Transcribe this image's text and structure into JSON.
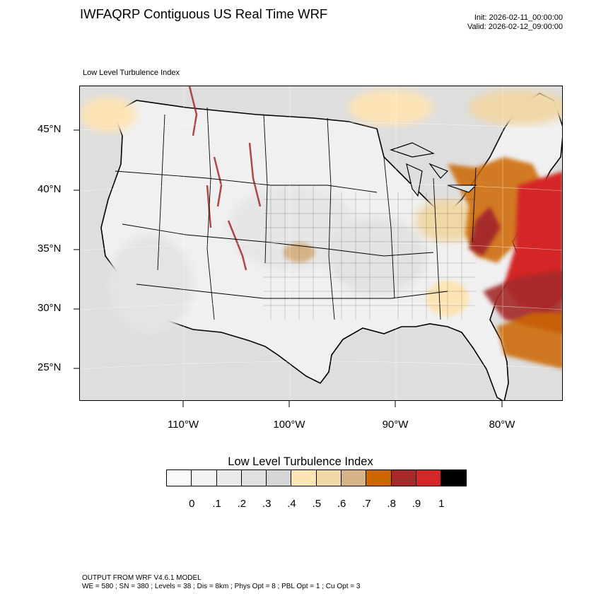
{
  "title": "IWFAQRP Contiguous US Real Time WRF",
  "run": {
    "init": "Init: 2026-02-11_00:00:00",
    "valid": "Valid: 2026-02-12_09:00:00"
  },
  "field_label": "Low Level Turbulence Index",
  "map": {
    "projection": "lambert-conformal",
    "lat_labels": [
      "45°N",
      "40°N",
      "35°N",
      "30°N",
      "25°N"
    ],
    "lon_labels": [
      "110°W",
      "100°W",
      "90°W",
      "80°W"
    ]
  },
  "colorbar": {
    "title": "Low Level Turbulence Index",
    "colors": [
      "#fafafa",
      "#f3f3f3",
      "#eaeaea",
      "#e0e0e0",
      "#d5d5d5",
      "#fde4b5",
      "#f0d7a6",
      "#d6b386",
      "#cc6600",
      "#a52a2a",
      "#d42828",
      "#000000"
    ],
    "ticks": [
      "0",
      ".1",
      ".2",
      ".3",
      ".4",
      ".5",
      ".6",
      ".7",
      ".8",
      ".9",
      "1"
    ]
  },
  "footer": {
    "line1": "OUTPUT FROM WRF V4.6.1 MODEL",
    "line2": "WE = 580 ; SN = 380 ; Levels = 38 ; Dis = 8km ; Phys Opt = 8 ; PBL Opt = 1 ; Cu Opt = 3"
  }
}
